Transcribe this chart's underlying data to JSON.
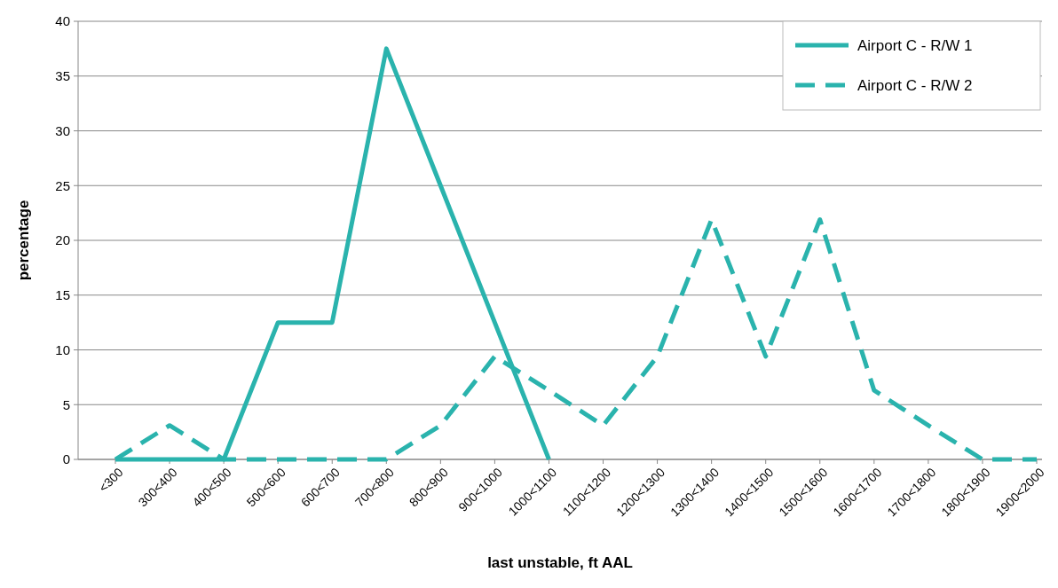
{
  "chart_data": {
    "type": "line",
    "xlabel": "last unstable, ft AAL",
    "ylabel": "percentage",
    "categories": [
      "<300",
      "300<400",
      "400<500",
      "500<600",
      "600<700",
      "700<800",
      "800<900",
      "900<1000",
      "1000<1100",
      "1100<1200",
      "1200<1300",
      "1300<1400",
      "1400<1500",
      "1500<1600",
      "1600<1700",
      "1700<1800",
      "1800<1900",
      "1900<2000"
    ],
    "series": [
      {
        "name": "Airport C - R/W 1",
        "color": "#2ab3ad",
        "line_style": "solid",
        "values": [
          0,
          0,
          0,
          12.5,
          12.5,
          37.5,
          25,
          12.5,
          0,
          null,
          null,
          null,
          null,
          null,
          null,
          null,
          null,
          null
        ]
      },
      {
        "name": "Airport C - R/W 2",
        "color": "#2ab3ad",
        "line_style": "dashed",
        "values": [
          0,
          3.1,
          0,
          0,
          0,
          0,
          3.1,
          9.4,
          6.3,
          3.1,
          9.4,
          21.9,
          9.4,
          21.9,
          6.3,
          3.1,
          0,
          0
        ]
      }
    ],
    "ylim": [
      0,
      40
    ],
    "yticks": [
      0,
      5,
      10,
      15,
      20,
      25,
      30,
      35,
      40
    ],
    "grid": "y",
    "legend": "top right",
    "marker": "none"
  }
}
